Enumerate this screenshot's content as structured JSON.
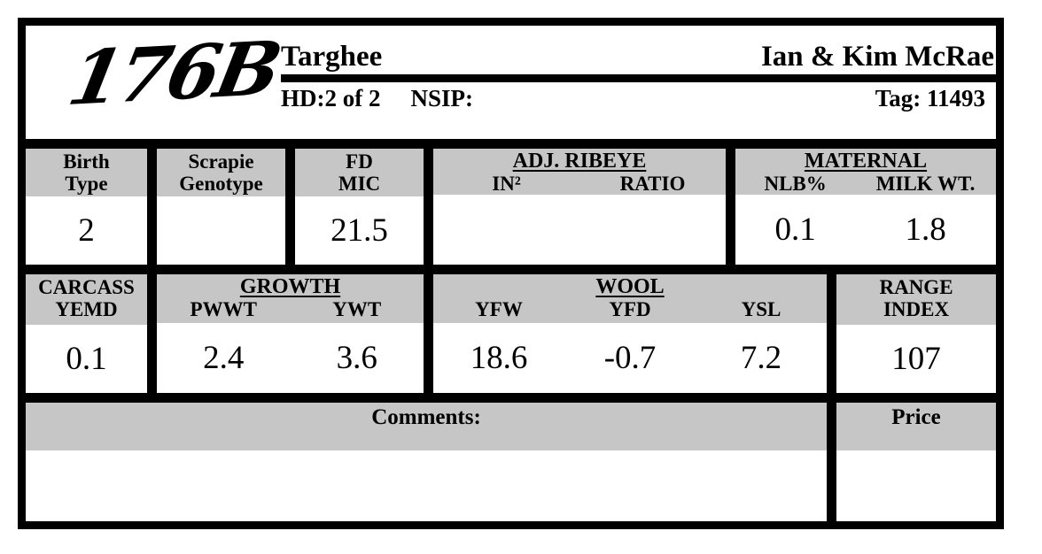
{
  "header": {
    "animal_id": "176B",
    "breed": "Targhee",
    "owner": "Ian & Kim McRae",
    "hd": "HD:2 of 2",
    "nsip_label": "NSIP:",
    "tag": "Tag: 11493"
  },
  "row1": {
    "birth_type": {
      "label1": "Birth",
      "label2": "Type",
      "value": "2"
    },
    "scrapie": {
      "label1": "Scrapie",
      "label2": "Genotype",
      "value": ""
    },
    "fd_mic": {
      "label1": "FD",
      "label2": "MIC",
      "value": "21.5"
    },
    "adj_ribeye": {
      "title": "ADJ. RIBEYE",
      "cols": [
        {
          "label": "IN²",
          "value": ""
        },
        {
          "label": "RATIO",
          "value": ""
        }
      ]
    },
    "maternal": {
      "title": "MATERNAL",
      "cols": [
        {
          "label": "NLB%",
          "value": "0.1"
        },
        {
          "label": "MILK WT.",
          "value": "1.8"
        }
      ]
    }
  },
  "row2": {
    "carcass": {
      "label1": "CARCASS",
      "label2": "YEMD",
      "value": "0.1"
    },
    "growth": {
      "title": "GROWTH",
      "cols": [
        {
          "label": "PWWT",
          "value": "2.4"
        },
        {
          "label": "YWT",
          "value": "3.6"
        }
      ]
    },
    "wool": {
      "title": "WOOL",
      "cols": [
        {
          "label": "YFW",
          "value": "18.6"
        },
        {
          "label": "YFD",
          "value": "-0.7"
        },
        {
          "label": "YSL",
          "value": "7.2"
        }
      ]
    },
    "range_index": {
      "label1": "RANGE",
      "label2": "INDEX",
      "value": "107"
    }
  },
  "row3": {
    "comments_label": "Comments:",
    "price_label": "Price"
  },
  "colors": {
    "band_gray": "#c6c6c6",
    "border_black": "#000000"
  }
}
